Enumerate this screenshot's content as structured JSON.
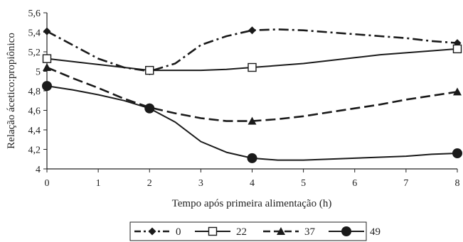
{
  "chart_data": {
    "type": "line",
    "xlabel": "Tempo após primeira alimentação (h)",
    "ylabel": "Relação ácetico:propiônico",
    "xlim": [
      0,
      8
    ],
    "ylim": [
      4,
      5.6
    ],
    "x_ticks": [
      "0",
      "1",
      "2",
      "3",
      "4",
      "5",
      "6",
      "7",
      "8"
    ],
    "y_ticks": [
      "4",
      "4,2",
      "4,4",
      "4,6",
      "4,8",
      "5",
      "5,2",
      "5,4",
      "5,6"
    ],
    "grid": false,
    "legend_position": "bottom",
    "x": [
      0,
      2,
      4,
      8
    ],
    "series": [
      {
        "name": "0",
        "values": [
          5.41,
          5.0,
          5.42,
          5.29
        ],
        "marker": "diamond",
        "dash": "dash-dot",
        "color": "#1a1a1a",
        "curve": [
          [
            0,
            5.41
          ],
          [
            0.5,
            5.27
          ],
          [
            1,
            5.13
          ],
          [
            1.5,
            5.04
          ],
          [
            2,
            5.0
          ],
          [
            2.5,
            5.08
          ],
          [
            3,
            5.27
          ],
          [
            3.5,
            5.36
          ],
          [
            4,
            5.42
          ],
          [
            4.5,
            5.43
          ],
          [
            5,
            5.42
          ],
          [
            5.5,
            5.4
          ],
          [
            6,
            5.38
          ],
          [
            6.5,
            5.36
          ],
          [
            7,
            5.34
          ],
          [
            7.5,
            5.31
          ],
          [
            8,
            5.29
          ]
        ]
      },
      {
        "name": "22",
        "values": [
          5.13,
          5.01,
          5.04,
          5.23
        ],
        "marker": "square",
        "dash": "solid",
        "color": "#1a1a1a",
        "curve": [
          [
            0,
            5.13
          ],
          [
            0.5,
            5.1
          ],
          [
            1,
            5.07
          ],
          [
            1.5,
            5.04
          ],
          [
            2,
            5.01
          ],
          [
            2.5,
            5.01
          ],
          [
            3,
            5.01
          ],
          [
            3.5,
            5.02
          ],
          [
            4,
            5.04
          ],
          [
            4.5,
            5.06
          ],
          [
            5,
            5.08
          ],
          [
            5.5,
            5.11
          ],
          [
            6,
            5.14
          ],
          [
            6.5,
            5.17
          ],
          [
            7,
            5.19
          ],
          [
            7.5,
            5.21
          ],
          [
            8,
            5.23
          ]
        ]
      },
      {
        "name": "37",
        "values": [
          5.04,
          4.63,
          4.49,
          4.79
        ],
        "marker": "triangle",
        "dash": "dash",
        "color": "#1a1a1a",
        "curve": [
          [
            0,
            5.04
          ],
          [
            0.5,
            4.93
          ],
          [
            1,
            4.83
          ],
          [
            1.5,
            4.72
          ],
          [
            2,
            4.63
          ],
          [
            2.5,
            4.57
          ],
          [
            3,
            4.52
          ],
          [
            3.5,
            4.49
          ],
          [
            4,
            4.49
          ],
          [
            4.5,
            4.51
          ],
          [
            5,
            4.54
          ],
          [
            5.5,
            4.58
          ],
          [
            6,
            4.62
          ],
          [
            6.5,
            4.66
          ],
          [
            7,
            4.71
          ],
          [
            7.5,
            4.75
          ],
          [
            8,
            4.79
          ]
        ]
      },
      {
        "name": "49",
        "values": [
          4.85,
          4.62,
          4.11,
          4.16
        ],
        "marker": "circle",
        "dash": "solid",
        "color": "#1a1a1a",
        "curve": [
          [
            0,
            4.85
          ],
          [
            0.5,
            4.81
          ],
          [
            1,
            4.76
          ],
          [
            1.5,
            4.7
          ],
          [
            2,
            4.62
          ],
          [
            2.5,
            4.48
          ],
          [
            3,
            4.28
          ],
          [
            3.5,
            4.17
          ],
          [
            4,
            4.11
          ],
          [
            4.5,
            4.09
          ],
          [
            5,
            4.09
          ],
          [
            5.5,
            4.1
          ],
          [
            6,
            4.11
          ],
          [
            6.5,
            4.12
          ],
          [
            7,
            4.13
          ],
          [
            7.5,
            4.15
          ],
          [
            8,
            4.16
          ]
        ]
      }
    ]
  }
}
